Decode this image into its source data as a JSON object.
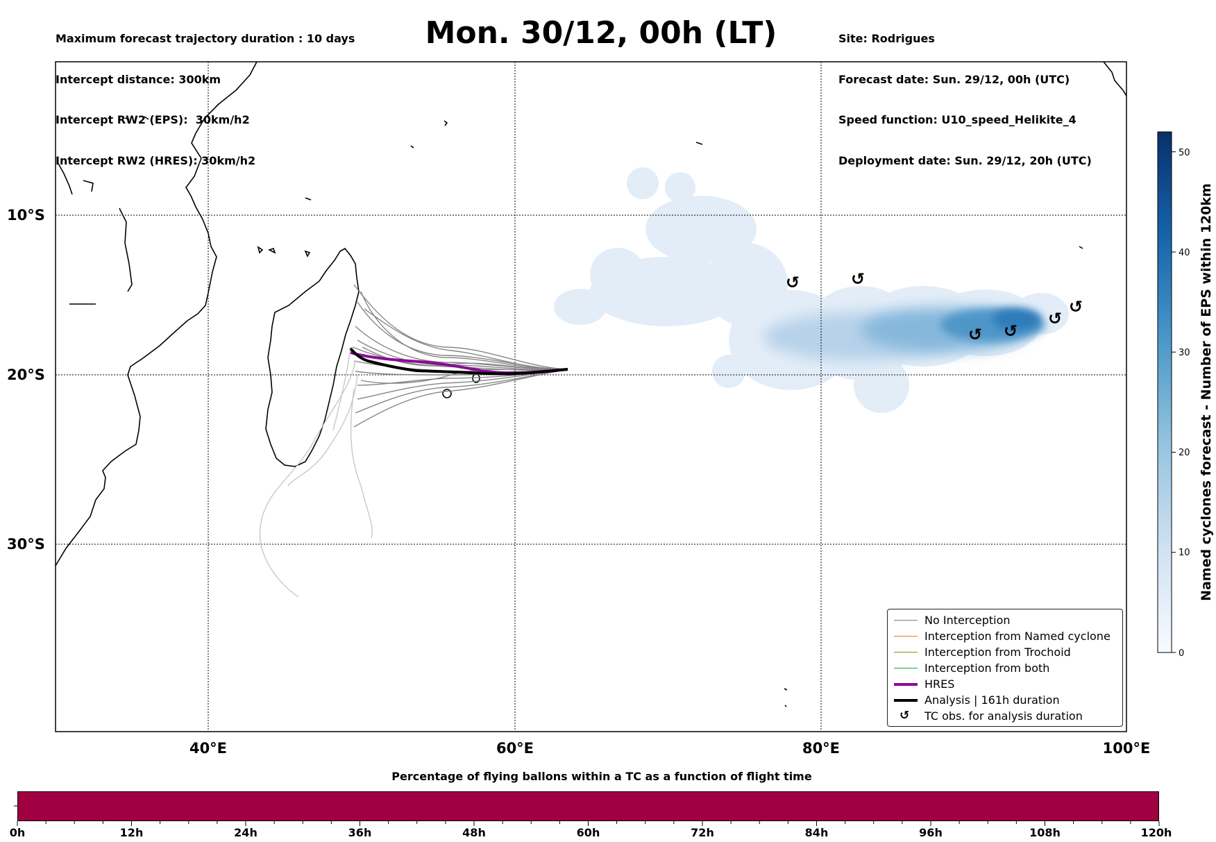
{
  "header": {
    "left_lines": [
      "Maximum forecast trajectory duration : 10 days",
      "Intercept distance: 300km",
      "Intercept RW2 (EPS):  30km/h2",
      "Intercept RW2 (HRES): 30km/h2"
    ],
    "title": "Mon. 30/12, 00h (LT)",
    "right_lines": [
      "Site: Rodrigues",
      "Forecast date: Sun. 29/12, 00h (UTC)",
      "Speed function: U10_speed_Helikite_4",
      "Deployment date: Sun. 29/12, 20h (UTC)"
    ]
  },
  "map": {
    "lat_labels": [
      "10°S",
      "20°S",
      "30°S"
    ],
    "lon_labels": [
      "40°E",
      "60°E",
      "80°E",
      "100°E"
    ],
    "colors": {
      "no_interception": "#7a7a7a",
      "named_cyclone": "#ff6a2a",
      "trochoid": "#8a8a1a",
      "both": "#22a022",
      "hres": "#8b0a9a",
      "analysis": "#000000"
    }
  },
  "legend": {
    "items": [
      {
        "label": "No Interception",
        "color": "#7a7a7a",
        "style": "thin"
      },
      {
        "label": "Interception from Named cyclone",
        "color": "#ff6a2a",
        "style": "thin"
      },
      {
        "label": "Interception from Trochoid",
        "color": "#8a8a1a",
        "style": "thin"
      },
      {
        "label": "Interception from both",
        "color": "#22a022",
        "style": "thin"
      },
      {
        "label": "HRES",
        "color": "#8b0a9a",
        "style": "thick"
      },
      {
        "label": "Analysis | 161h duration",
        "color": "#000000",
        "style": "thick"
      },
      {
        "label": "TC obs. for analysis duration",
        "color": "#000000",
        "style": "symbol",
        "symbol": "↺"
      }
    ]
  },
  "colorbar": {
    "title": "Named cyclones forecast - Number of EPS within 120km",
    "ticks": [
      "0",
      "10",
      "20",
      "30",
      "40",
      "50"
    ],
    "colors": [
      "#f7fbff",
      "#08306b"
    ]
  },
  "timebar": {
    "title": "Percentage of flying ballons within a TC as a function of flight time",
    "color": "#9e0041",
    "ticks": [
      "0h",
      "12h",
      "24h",
      "36h",
      "48h",
      "60h",
      "72h",
      "84h",
      "96h",
      "108h",
      "120h"
    ]
  }
}
